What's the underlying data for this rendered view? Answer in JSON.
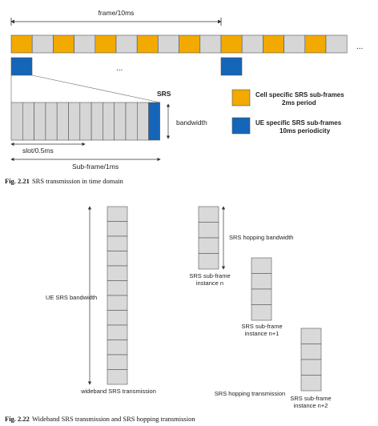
{
  "figure1": {
    "frame_label": "frame/10ms",
    "ellipsis_right": "...",
    "ellipsis_mid": "...",
    "srs_label": "SRS",
    "bandwidth_label": "bandwidth",
    "slot_label": "slot/0.5ms",
    "subframe_label": "Sub-frame/1ms",
    "legend": [
      {
        "line1": "Cell specific SRS sub-frames",
        "line2": "2ms period",
        "color": "#F2A900"
      },
      {
        "line1": "UE specific SRS sub-frames",
        "line2": "10ms periodicity",
        "color": "#1565B8"
      }
    ],
    "caption_num": "Fig. 2.21",
    "caption_text": "SRS transmission in time domain",
    "colors": {
      "cell": "#F2A900",
      "ue": "#1565B8",
      "grey": "#D6D6D6",
      "edge": "#555555"
    }
  },
  "figure2": {
    "ue_bw_label": "UE SRS bandwidth",
    "wideband_label": "wideband SRS transmission",
    "hopping_bw_label": "SRS hopping bandwidth",
    "instance_n": [
      "SRS sub-frame",
      "instance n"
    ],
    "instance_n1": [
      "SRS sub-frame",
      "instance n+1"
    ],
    "instance_n2": [
      "SRS sub-frame",
      "instance n+2"
    ],
    "hopping_label": "SRS hopping transmission",
    "caption_num": "Fig. 2.22",
    "caption_text": "Wideband SRS transmission and SRS hopping transmission"
  }
}
